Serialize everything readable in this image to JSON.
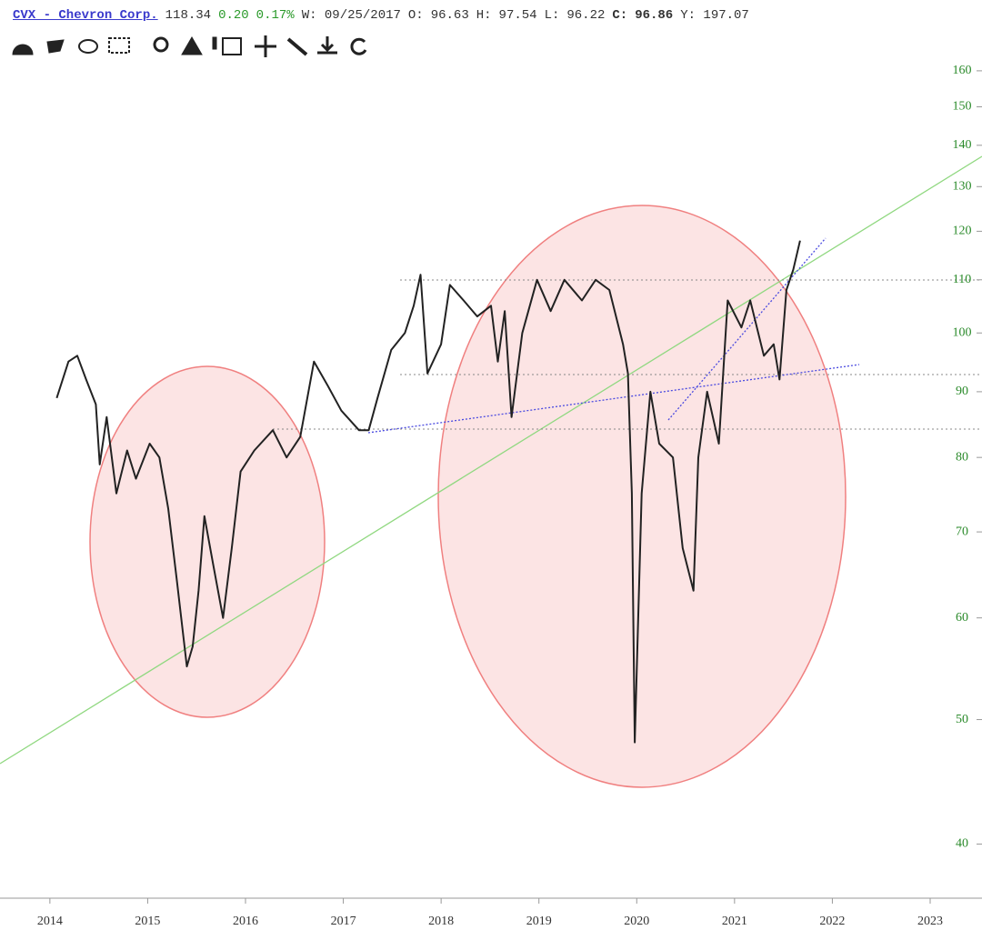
{
  "header": {
    "symbol": "CVX - Chevron Corp.",
    "price": "118.34",
    "change": "0.20",
    "change_pct": "0.17%",
    "date": "W: 09/25/2017",
    "open_label": "O:",
    "open": "96.63",
    "high_label": "H:",
    "high": "97.54",
    "low_label": "L:",
    "low": "96.22",
    "close_label": "C:",
    "close": "96.86",
    "year": "Y: 197.07"
  },
  "chart_data": {
    "type": "line",
    "color": "#222222",
    "log_scale": true,
    "x": [
      2014.07,
      2014.19,
      2014.28,
      2014.37,
      2014.47,
      2014.51,
      2014.58,
      2014.68,
      2014.79,
      2014.88,
      2015.02,
      2015.12,
      2015.21,
      2015.3,
      2015.4,
      2015.46,
      2015.52,
      2015.58,
      2015.67,
      2015.77,
      2015.86,
      2015.95,
      2016.09,
      2016.28,
      2016.42,
      2016.56,
      2016.7,
      2016.84,
      2016.98,
      2017.16,
      2017.26,
      2017.35,
      2017.49,
      2017.63,
      2017.72,
      2017.79,
      2017.86,
      2018.0,
      2018.09,
      2018.23,
      2018.37,
      2018.51,
      2018.58,
      2018.65,
      2018.72,
      2018.83,
      2018.98,
      2019.12,
      2019.26,
      2019.44,
      2019.58,
      2019.72,
      2019.86,
      2019.91,
      2019.95,
      2019.98,
      2020.05,
      2020.14,
      2020.23,
      2020.37,
      2020.47,
      2020.58,
      2020.63,
      2020.72,
      2020.84,
      2020.93,
      2021.07,
      2021.16,
      2021.3,
      2021.4,
      2021.46,
      2021.53,
      2021.6,
      2021.67
    ],
    "values": [
      89,
      95,
      96,
      92,
      88,
      79,
      86,
      75,
      81,
      77,
      82,
      80,
      73,
      64,
      55,
      57,
      63,
      72,
      66,
      60,
      68,
      78,
      81,
      84,
      80,
      83,
      95,
      91,
      87,
      84,
      84,
      89,
      97,
      100,
      105,
      111,
      93,
      98,
      109,
      106,
      103,
      105,
      95,
      104,
      86,
      100,
      110,
      104,
      110,
      106,
      110,
      108,
      98,
      93,
      75,
      48,
      75,
      90,
      82,
      80,
      68,
      63,
      80,
      90,
      82,
      106,
      101,
      106,
      96,
      98,
      92,
      108,
      112,
      118
    ],
    "xlim": [
      2013.49,
      2023.53
    ],
    "xticks": [
      2014,
      2015,
      2016,
      2017,
      2018,
      2019,
      2020,
      2021,
      2022,
      2023
    ],
    "ylim": [
      36.3,
      162.6
    ],
    "yticks": [
      40,
      50,
      60,
      70,
      80,
      90,
      100,
      110,
      120,
      130,
      140,
      150,
      160
    ]
  }
}
